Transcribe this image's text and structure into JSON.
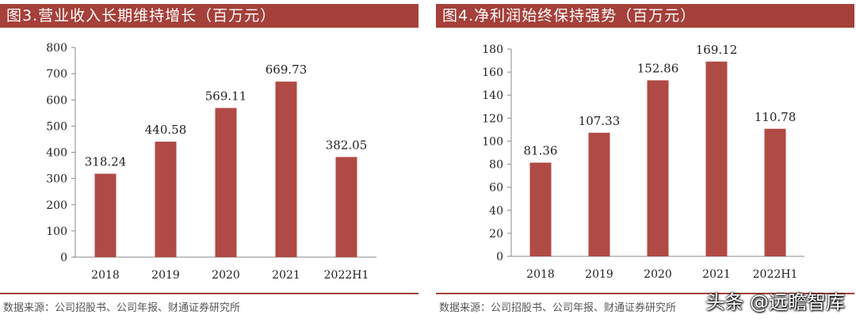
{
  "charts": [
    {
      "title": "图3.营业收入长期维持增长（百万元）",
      "source": "数据来源：公司招股书、公司年报、财通证券研究所",
      "chart_data": {
        "type": "bar",
        "categories": [
          "2018",
          "2019",
          "2020",
          "2021",
          "2022H1"
        ],
        "values": [
          318.24,
          440.58,
          569.11,
          669.73,
          382.05
        ],
        "value_labels": [
          "318.24",
          "440.58",
          "569.11",
          "669.73",
          "382.05"
        ],
        "title": "图3.营业收入长期维持增长（百万元）",
        "xlabel": "",
        "ylabel": "",
        "ylim": [
          0,
          800
        ],
        "yticks": [
          0,
          100,
          200,
          300,
          400,
          500,
          600,
          700,
          800
        ],
        "grid": false,
        "legend": "none",
        "bar_color": "#b04a44"
      }
    },
    {
      "title": "图4.净利润始终保持强势（百万元）",
      "source": "数据来源：公司招股书、公司年报、财通证券研究所",
      "chart_data": {
        "type": "bar",
        "categories": [
          "2018",
          "2019",
          "2020",
          "2021",
          "2022H1"
        ],
        "values": [
          81.36,
          107.33,
          152.86,
          169.12,
          110.78
        ],
        "value_labels": [
          "81.36",
          "107.33",
          "152.86",
          "169.12",
          "110.78"
        ],
        "title": "图4.净利润始终保持强势（百万元）",
        "xlabel": "",
        "ylabel": "",
        "ylim": [
          0,
          180
        ],
        "yticks": [
          0,
          20,
          40,
          60,
          80,
          100,
          120,
          140,
          160,
          180
        ],
        "grid": false,
        "legend": "none",
        "bar_color": "#b04a44"
      }
    }
  ],
  "watermark": "头条 @远瞻智库",
  "colors": {
    "title_bg": "#a5403a",
    "title_text": "#ffffff",
    "bar": "#b04a44"
  }
}
